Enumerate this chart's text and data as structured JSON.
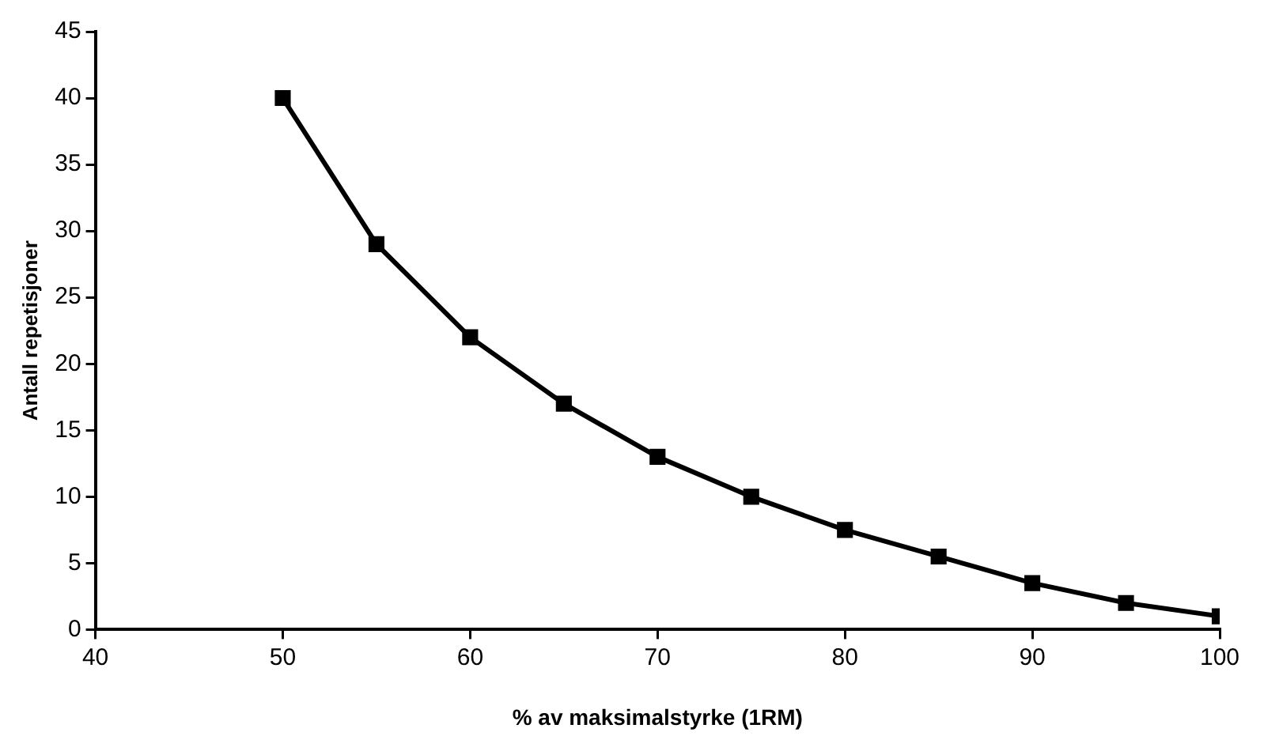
{
  "chart_data": {
    "type": "line",
    "xlabel": "% av maksimalstyrke (1RM)",
    "ylabel": "Antall repetisjoner",
    "x": [
      50,
      55,
      60,
      65,
      70,
      75,
      80,
      85,
      90,
      95,
      100
    ],
    "series": [
      {
        "color": "#000000",
        "values": [
          40,
          29,
          22,
          17,
          13,
          10,
          7.5,
          5.5,
          3.5,
          2,
          1
        ]
      }
    ],
    "xlim": [
      40,
      100
    ],
    "xticks": [
      40,
      50,
      60,
      70,
      80,
      90,
      100
    ],
    "ylim": [
      0,
      45
    ],
    "yticks": [
      0,
      5,
      10,
      15,
      20,
      25,
      30,
      35,
      40,
      45
    ],
    "grid": false,
    "legend": false,
    "marker": "square",
    "line_style": "solid"
  }
}
